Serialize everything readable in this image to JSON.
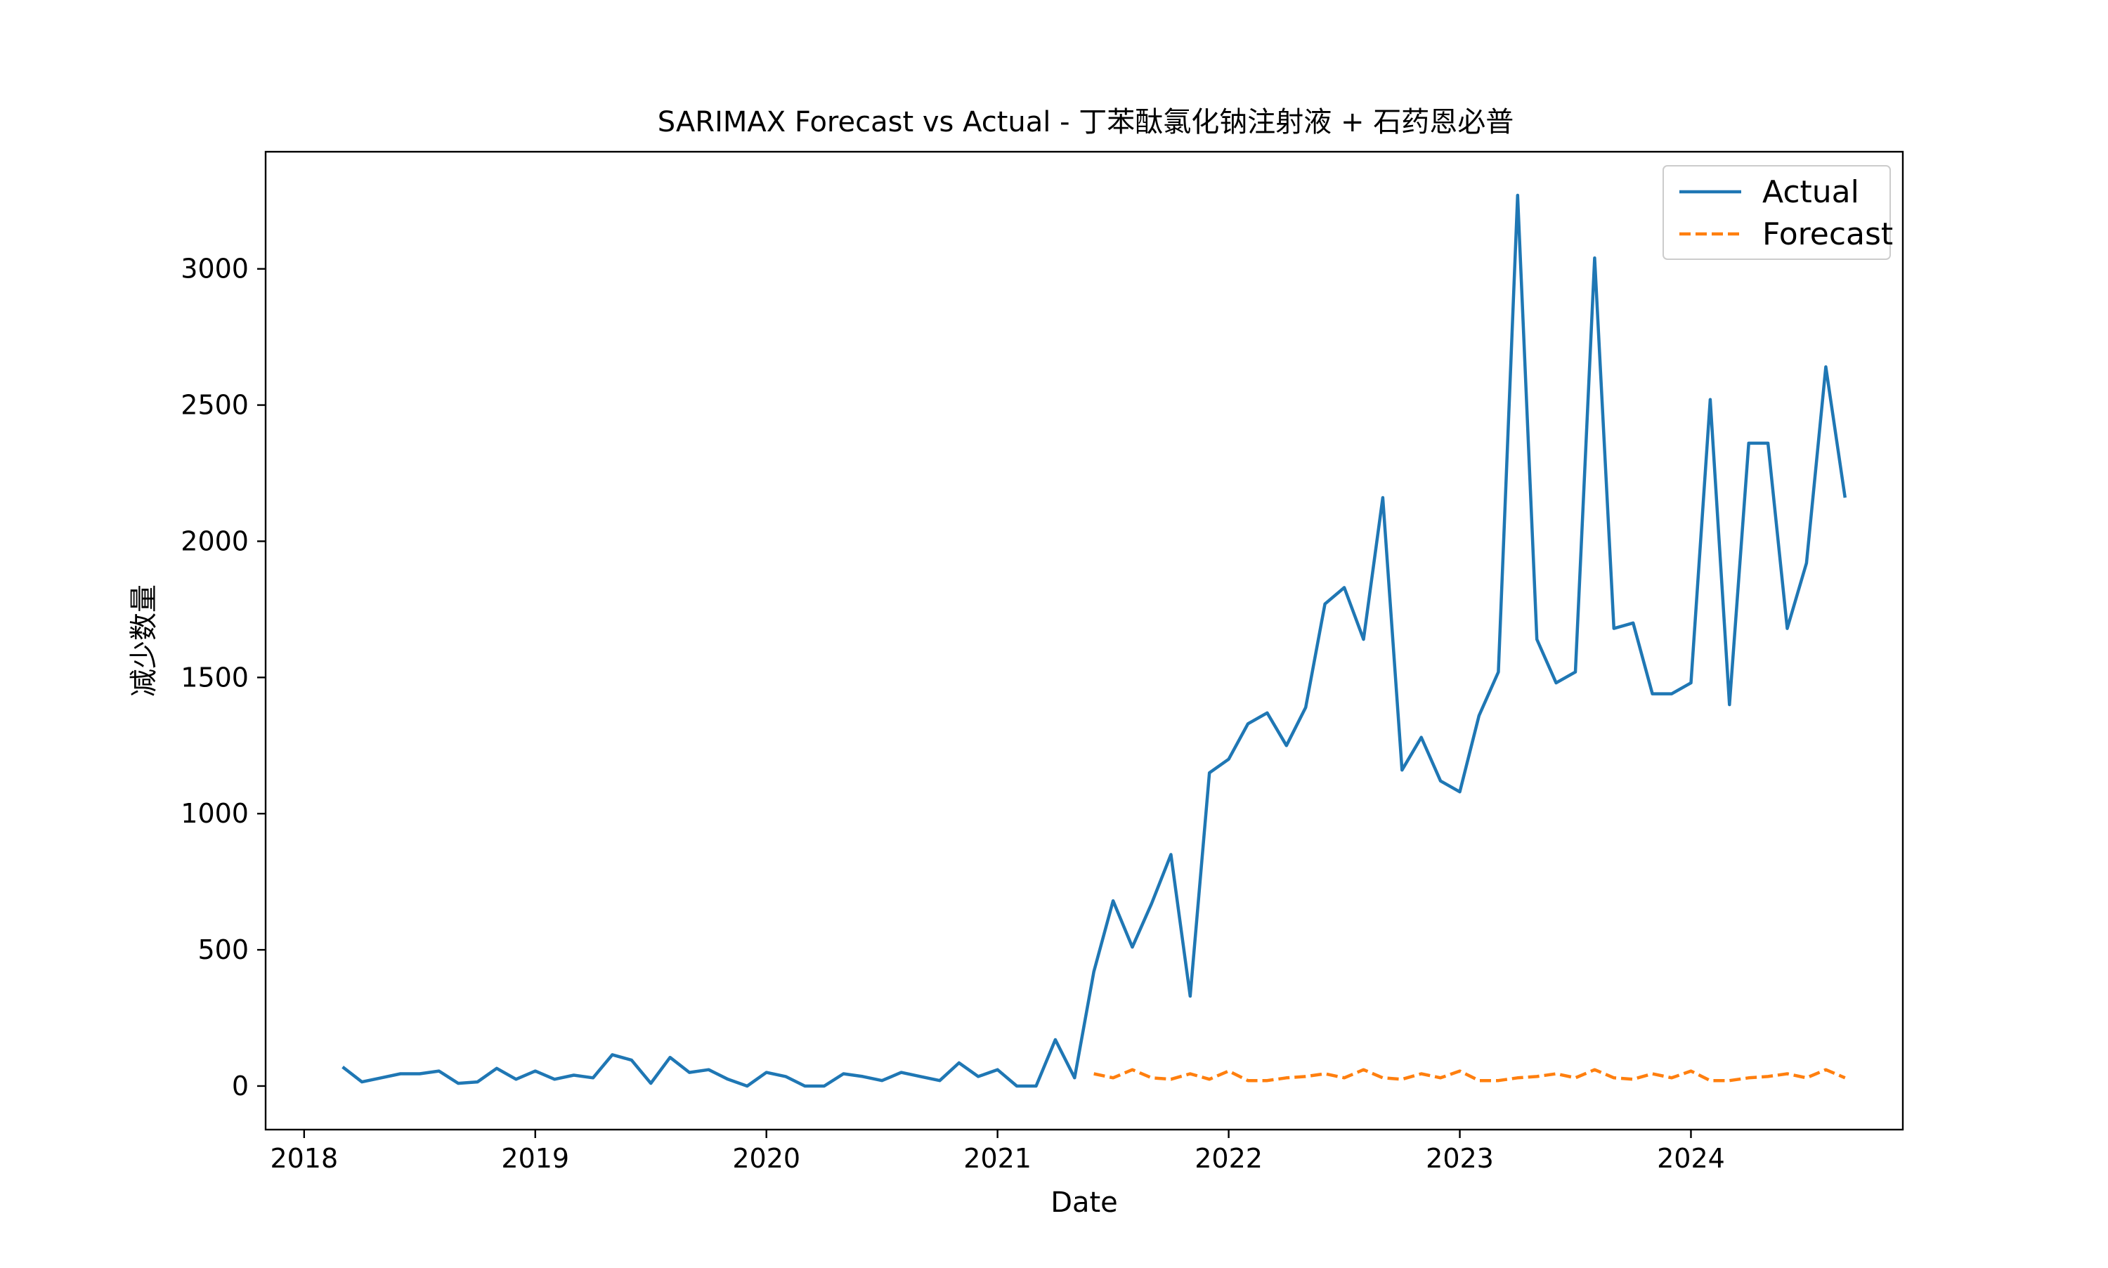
{
  "chart_data": {
    "type": "line",
    "title": "SARIMAX Forecast vs Actual - 丁苯酞氯化钠注射液 + 石药恩必普",
    "xlabel": "Date",
    "ylabel": "减少数量",
    "x_ticks": [
      "2018",
      "2019",
      "2020",
      "2021",
      "2022",
      "2023",
      "2024"
    ],
    "y_ticks": [
      "0",
      "500",
      "1000",
      "1500",
      "2000",
      "2500",
      "3000"
    ],
    "xlim": [
      "2017-11",
      "2024-12"
    ],
    "ylim": [
      -160,
      3430
    ],
    "grid": false,
    "legend": "top-right",
    "series": [
      {
        "name": "Actual",
        "color": "#1f77b4",
        "style": "solid",
        "x": [
          "2018-03",
          "2018-04",
          "2018-05",
          "2018-06",
          "2018-07",
          "2018-08",
          "2018-09",
          "2018-10",
          "2018-11",
          "2018-12",
          "2019-01",
          "2019-02",
          "2019-03",
          "2019-04",
          "2019-05",
          "2019-06",
          "2019-07",
          "2019-08",
          "2019-09",
          "2019-10",
          "2019-11",
          "2019-12",
          "2020-01",
          "2020-02",
          "2020-03",
          "2020-04",
          "2020-05",
          "2020-06",
          "2020-07",
          "2020-08",
          "2020-09",
          "2020-10",
          "2020-11",
          "2020-12",
          "2021-01",
          "2021-02",
          "2021-03",
          "2021-04",
          "2021-05",
          "2021-06",
          "2021-07",
          "2021-08",
          "2021-09",
          "2021-10",
          "2021-11",
          "2021-12",
          "2022-01",
          "2022-02",
          "2022-03",
          "2022-04",
          "2022-05",
          "2022-06",
          "2022-07",
          "2022-08",
          "2022-09",
          "2022-10",
          "2022-11",
          "2022-12",
          "2023-01",
          "2023-02",
          "2023-03",
          "2023-04",
          "2023-05",
          "2023-06",
          "2023-07",
          "2023-08",
          "2023-09",
          "2023-10",
          "2023-11",
          "2023-12",
          "2024-01",
          "2024-02",
          "2024-03",
          "2024-04",
          "2024-05",
          "2024-06",
          "2024-07",
          "2024-08",
          "2024-09"
        ],
        "values": [
          70,
          15,
          30,
          45,
          45,
          55,
          10,
          15,
          65,
          25,
          55,
          25,
          40,
          30,
          115,
          95,
          10,
          105,
          50,
          60,
          25,
          0,
          50,
          35,
          0,
          0,
          45,
          35,
          20,
          50,
          35,
          20,
          85,
          35,
          60,
          0,
          0,
          170,
          30,
          420,
          680,
          510,
          670,
          850,
          330,
          1150,
          1200,
          1330,
          1370,
          1250,
          1390,
          1770,
          1830,
          1640,
          2160,
          1160,
          1280,
          1120,
          1080,
          1360,
          1520,
          3270,
          1640,
          1480,
          1520,
          3040,
          1680,
          1700,
          1440,
          1440,
          1480,
          2520,
          1400,
          2360,
          2360,
          1680,
          1920,
          2640,
          2160
        ]
      },
      {
        "name": "Forecast",
        "color": "#ff7f0e",
        "style": "dashed",
        "x": [
          "2021-06",
          "2021-07",
          "2021-08",
          "2021-09",
          "2021-10",
          "2021-11",
          "2021-12",
          "2022-01",
          "2022-02",
          "2022-03",
          "2022-04",
          "2022-05",
          "2022-06",
          "2022-07",
          "2022-08",
          "2022-09",
          "2022-10",
          "2022-11",
          "2022-12",
          "2023-01",
          "2023-02",
          "2023-03",
          "2023-04",
          "2023-05",
          "2023-06",
          "2023-07",
          "2023-08",
          "2023-09",
          "2023-10",
          "2023-11",
          "2023-12",
          "2024-01",
          "2024-02",
          "2024-03",
          "2024-04",
          "2024-05",
          "2024-06",
          "2024-07",
          "2024-08",
          "2024-09"
        ],
        "values": [
          45,
          30,
          60,
          30,
          25,
          45,
          25,
          55,
          20,
          20,
          30,
          35,
          45,
          30,
          60,
          30,
          25,
          45,
          30,
          55,
          20,
          20,
          30,
          35,
          45,
          30,
          60,
          30,
          25,
          45,
          30,
          55,
          20,
          20,
          30,
          35,
          45,
          30,
          60,
          30
        ]
      }
    ]
  }
}
